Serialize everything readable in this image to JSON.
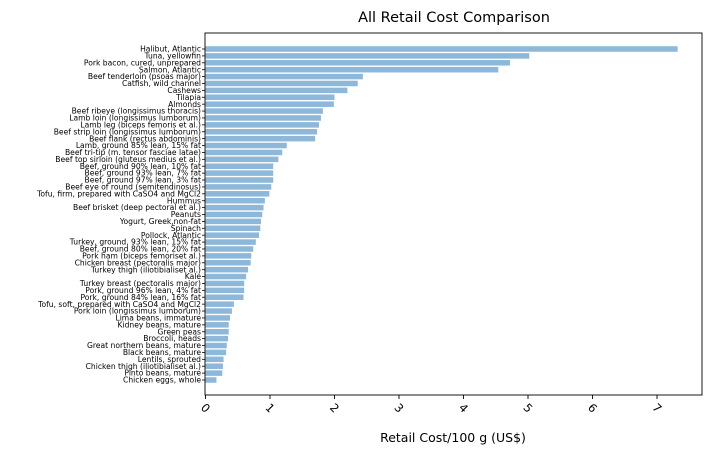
{
  "chart_data": {
    "type": "bar",
    "orientation": "horizontal",
    "title": "All Retail Cost Comparison",
    "xlabel": "Retail Cost/100 g (US$)",
    "ylabel": "",
    "xlim": [
      0,
      7.7
    ],
    "xticks": [
      "0",
      "1",
      "2",
      "3",
      "4",
      "5",
      "6",
      "7"
    ],
    "xtick_values": [
      0,
      1,
      2,
      3,
      4,
      5,
      6,
      7
    ],
    "bar_color": "#8db8d9",
    "grid": false,
    "categories": [
      "Halibut, Atlantic",
      "Tuna, yellowfin",
      "Pork bacon, cured, unprepared",
      "Salmon, Atlantic",
      "Beef tenderloin (psoas major)",
      "Catfish, wild channel",
      "Cashews",
      "Tilapia",
      "Almonds",
      "Beef ribeye (longissimus thoracis)",
      "Lamb loin (longissimus lumborum)",
      "Lamb leg (biceps femoris et al.)",
      "Beef strip loin (longissimus lumborum)",
      "Beef flank (rectus abdominis)",
      "Lamb, ground 85% lean, 15% fat",
      "Beef tri-tip (m. tensor fasciae latae)",
      "Beef top sirloin (gluteus medius et al.)",
      "Beef, ground 90% lean, 10% fat",
      "Beef, ground 93% lean, 7% fat",
      "Beef, ground 97% lean, 3% fat",
      "Beef eye of round (semitendinosus)",
      "Tofu, firm, prepared with CaSO4 and MgCl2",
      "Hummus",
      "Beef brisket (deep pectoral et al.)",
      "Peanuts",
      "Yogurt, Greek,non-fat",
      "Spinach",
      "Pollock, Atlantic",
      "Turkey, ground, 93% lean, 15% fat",
      "Beef, ground 80% lean, 20% fat",
      "Pork ham (biceps femoriset al.)",
      "Chicken breast (pectoralis major)",
      "Turkey thigh (iliotibialiset al.)",
      "Kale",
      "Turkey breast (pectoralis major)",
      "Pork, ground 96% lean, 4% fat",
      "Pork, ground 84% lean, 16% fat",
      "Tofu, soft, prepared with CaSO4 and MgCl2",
      "Pork loin (longissimus lumborum)",
      "Lima beans, immature",
      "Kidney beans, mature",
      "Green peas",
      "Broccoli, heads",
      "Great northern beans, mature",
      "Black beans, mature",
      "Lentils, sprouted",
      "Chicken thigh (iliotibialiset al.)",
      "Pinto beans, mature",
      "Chicken eggs, whole"
    ],
    "values": [
      7.32,
      5.02,
      4.72,
      4.54,
      2.44,
      2.36,
      2.2,
      2.0,
      1.99,
      1.82,
      1.79,
      1.76,
      1.73,
      1.7,
      1.26,
      1.19,
      1.13,
      1.05,
      1.05,
      1.05,
      1.02,
      0.99,
      0.92,
      0.9,
      0.88,
      0.86,
      0.85,
      0.83,
      0.78,
      0.74,
      0.71,
      0.7,
      0.66,
      0.63,
      0.6,
      0.6,
      0.59,
      0.44,
      0.41,
      0.38,
      0.36,
      0.36,
      0.35,
      0.33,
      0.32,
      0.28,
      0.27,
      0.26,
      0.17
    ]
  }
}
